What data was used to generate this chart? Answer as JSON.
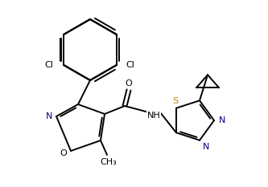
{
  "bg_color": "#ffffff",
  "line_color": "#000000",
  "atom_colors": {
    "N": "#00008b",
    "O": "#000000",
    "S": "#b8860b",
    "Cl": "#000000"
  },
  "figsize": [
    3.33,
    2.33
  ],
  "dpi": 100
}
